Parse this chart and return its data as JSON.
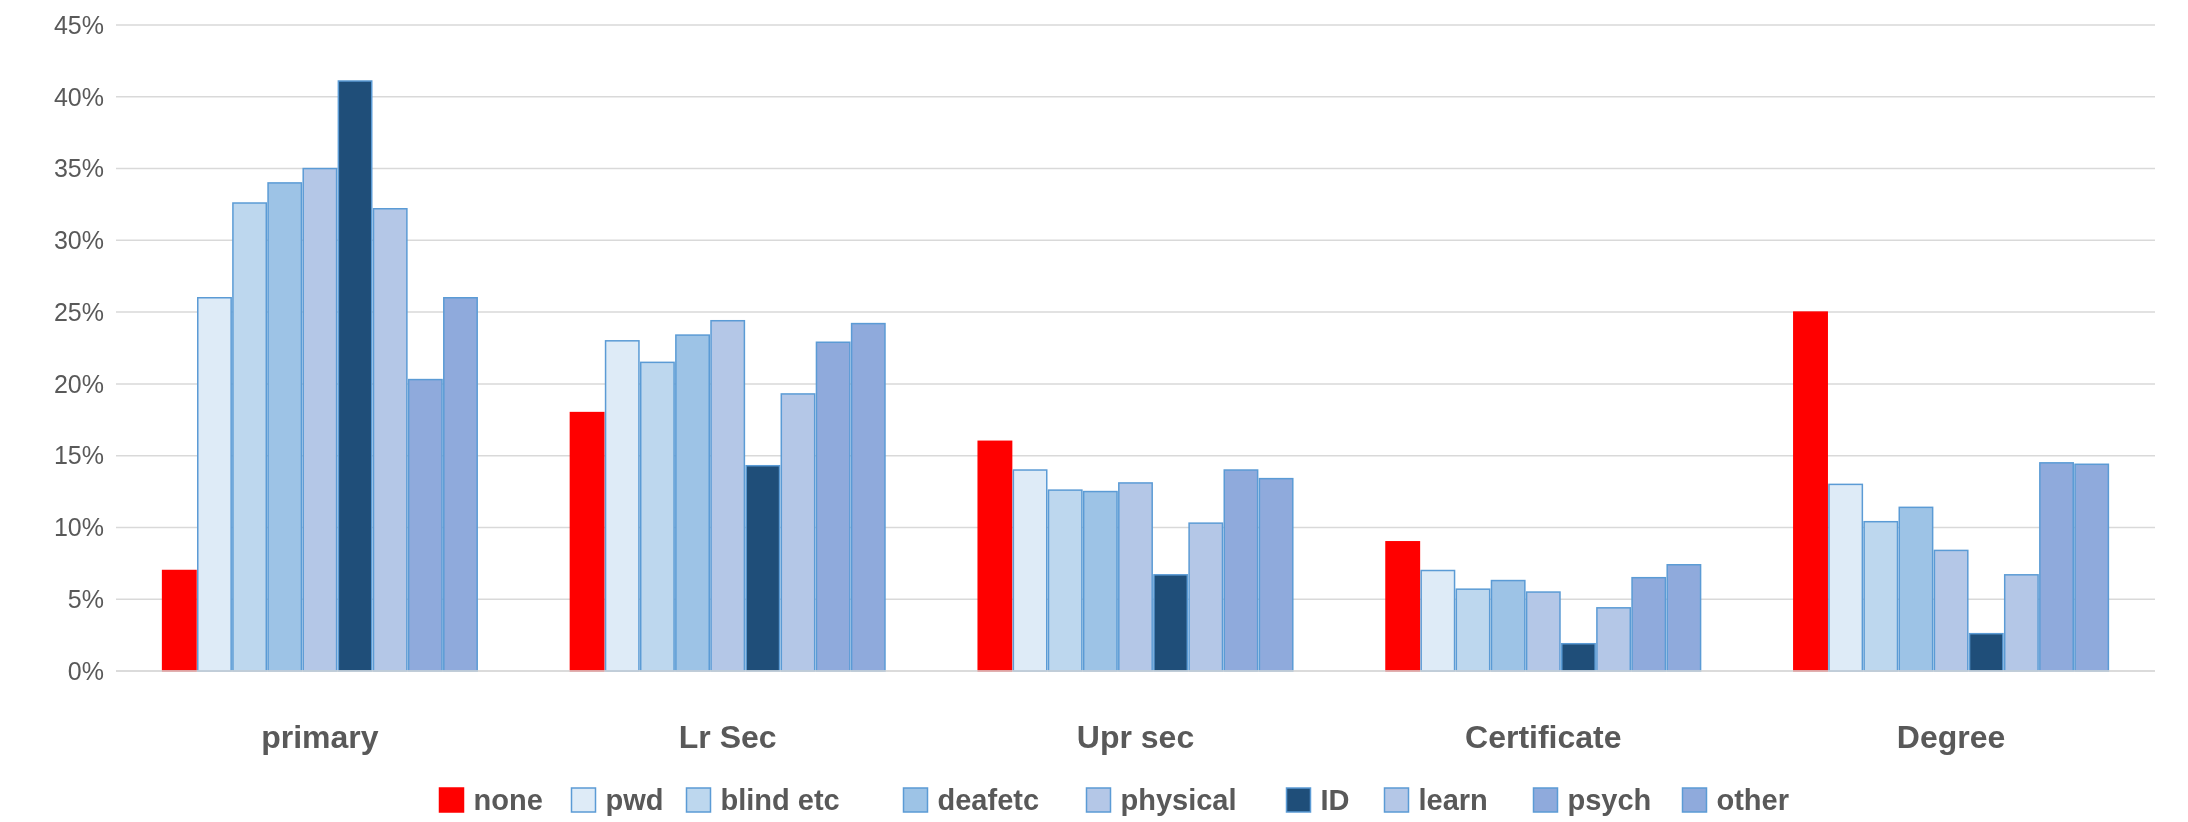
{
  "chart_data": {
    "type": "bar",
    "categories": [
      "primary",
      "Lr Sec",
      "Upr sec",
      "Certificate",
      "Degree"
    ],
    "series": [
      {
        "name": "none",
        "color": "#ff0000",
        "values": [
          7,
          18,
          16,
          9,
          25
        ]
      },
      {
        "name": "pwd",
        "color": "#deebf7",
        "values": [
          26,
          23,
          14,
          7,
          13
        ]
      },
      {
        "name": "blind etc",
        "color": "#bdd7ee",
        "values": [
          32.6,
          21.5,
          12.6,
          5.7,
          10.4
        ]
      },
      {
        "name": "deafetc",
        "color": "#9dc3e6",
        "values": [
          34,
          23.4,
          12.5,
          6.3,
          11.4
        ]
      },
      {
        "name": "physical",
        "color": "#b4c7e7",
        "values": [
          35,
          24.4,
          13.1,
          5.5,
          8.4
        ]
      },
      {
        "name": "ID",
        "color": "#1f4e79",
        "values": [
          41.1,
          14.3,
          6.7,
          1.9,
          2.6
        ]
      },
      {
        "name": "learn",
        "color": "#b4c7e7",
        "values": [
          32.2,
          19.3,
          10.3,
          4.4,
          6.7
        ]
      },
      {
        "name": "psych",
        "color": "#8faadc",
        "values": [
          20.3,
          22.9,
          14,
          6.5,
          14.5
        ]
      },
      {
        "name": "other",
        "color": "#8faadc",
        "values": [
          26,
          24.2,
          13.4,
          7.4,
          14.4
        ]
      }
    ],
    "ylim": [
      0,
      45
    ],
    "yticks": [
      {
        "value": 0,
        "label": "0%"
      },
      {
        "value": 5,
        "label": "5%"
      },
      {
        "value": 10,
        "label": "10%"
      },
      {
        "value": 15,
        "label": "15%"
      },
      {
        "value": 20,
        "label": "20%"
      },
      {
        "value": 25,
        "label": "25%"
      },
      {
        "value": 30,
        "label": "30%"
      },
      {
        "value": 35,
        "label": "35%"
      },
      {
        "value": 40,
        "label": "40%"
      },
      {
        "value": 45,
        "label": "45%"
      }
    ],
    "grid": "y",
    "legend": "bottom"
  }
}
